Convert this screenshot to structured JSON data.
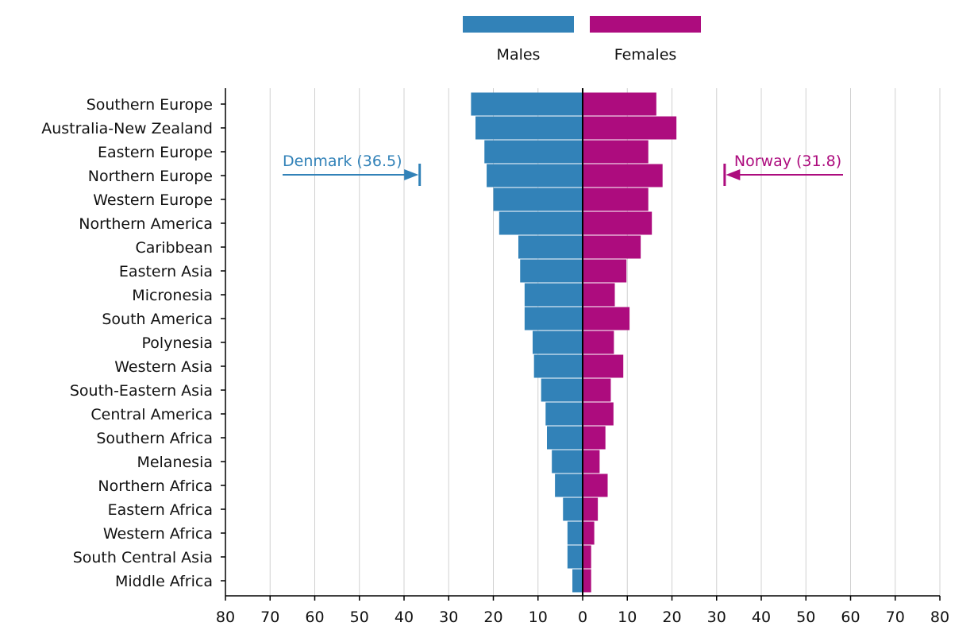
{
  "chart_data": {
    "type": "bar",
    "orientation": "horizontal",
    "categories": [
      "Southern Europe",
      "Australia-New Zealand",
      "Eastern Europe",
      "Northern Europe",
      "Western Europe",
      "Northern America",
      "Caribbean",
      "Eastern Asia",
      "Micronesia",
      "South America",
      "Polynesia",
      "Western Asia",
      "South-Eastern Asia",
      "Central America",
      "Southern Africa",
      "Melanesia",
      "Northern Africa",
      "Eastern Africa",
      "Western Africa",
      "South Central Asia",
      "Middle Africa"
    ],
    "series": [
      {
        "name": "Males",
        "color": "#3282b8",
        "values": [
          25,
          24,
          22,
          21.5,
          20,
          18.7,
          14.4,
          14,
          13,
          13,
          11.2,
          10.9,
          9.3,
          8.3,
          8,
          6.9,
          6.2,
          4.4,
          3.4,
          3.4,
          2.3
        ]
      },
      {
        "name": "Females",
        "color": "#ad0c7e",
        "values": [
          16.5,
          21,
          14.7,
          17.9,
          14.7,
          15.5,
          13,
          9.8,
          7.2,
          10.5,
          7,
          9.1,
          6.3,
          6.9,
          5.1,
          3.8,
          5.6,
          3.4,
          2.6,
          1.9,
          1.9
        ]
      }
    ],
    "xlim": [
      -80,
      80
    ],
    "xticks": [
      -80,
      -70,
      -60,
      -50,
      -40,
      -30,
      -20,
      -10,
      0,
      10,
      20,
      30,
      40,
      50,
      60,
      70,
      80
    ],
    "xtick_labels": [
      "80",
      "70",
      "60",
      "50",
      "40",
      "30",
      "20",
      "10",
      "0",
      "10",
      "20",
      "30",
      "40",
      "50",
      "60",
      "70",
      "80"
    ],
    "grid": "vertical",
    "legend_position": "top-center",
    "annotations": [
      {
        "text": "Denmark (36.5)",
        "value": -36.5,
        "category": "Northern Europe",
        "color": "#3282b8"
      },
      {
        "text": "Norway (31.8)",
        "value": 31.8,
        "category": "Northern Europe",
        "color": "#ad0c7e"
      }
    ]
  }
}
